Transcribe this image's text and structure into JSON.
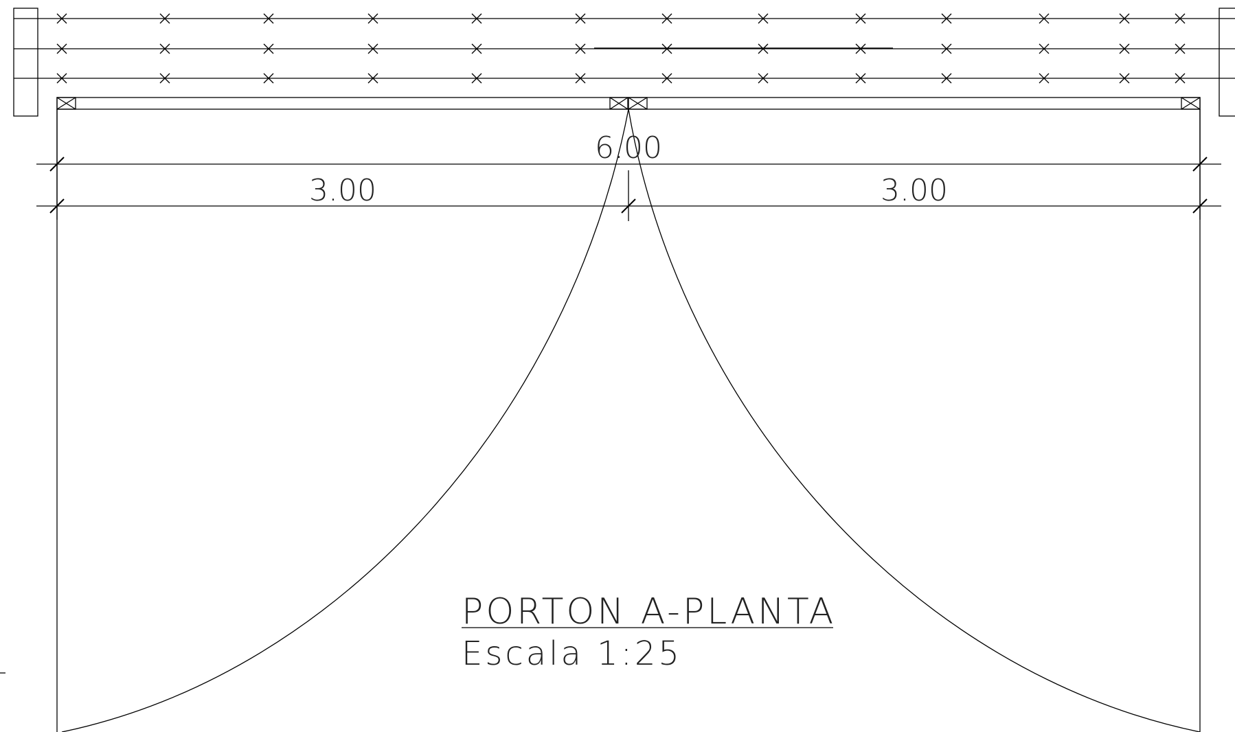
{
  "dimensions": {
    "total": "6.00",
    "left_leaf": "3.00",
    "right_leaf": "3.00"
  },
  "title": {
    "main": "PORTON A-PLANTA",
    "scale": "Escala 1:25"
  }
}
